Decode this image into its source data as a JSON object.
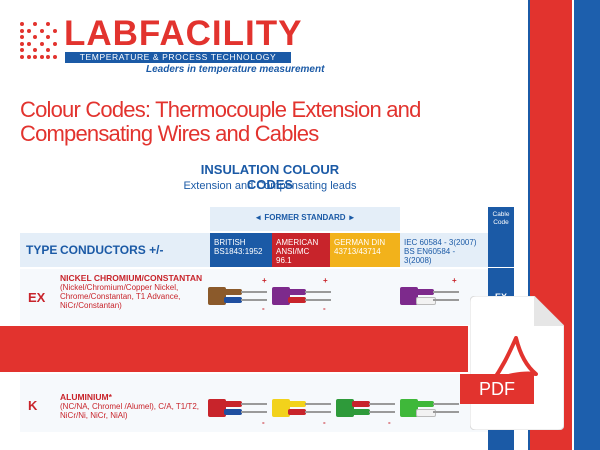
{
  "brand": {
    "name": "LABFACILITY",
    "subtitle": "TEMPERATURE & PROCESS TECHNOLOGY",
    "tagline": "Leaders in temperature measurement"
  },
  "page": {
    "title": "Colour Codes: Thermocouple Extension and Compensating Wires and Cables",
    "section_title": "INSULATION COLOUR CODES",
    "section_subtitle": "Extension and Compensating leads"
  },
  "table": {
    "former_standard": "◄ FORMER STANDARD ►",
    "cable_code_header": "Cable Code",
    "col_type": "TYPE",
    "col_conductors": "CONDUCTORS +/-",
    "standards": {
      "british": "BRITISH BS1843:1952",
      "american": "AMERICAN ANSI/MC 96.1",
      "german": "GERMAN DIN 43713/43714",
      "iec": "IEC 60584 - 3(2007) BS EN60584 - 3(2008)"
    },
    "rows": [
      {
        "type": "EX",
        "conductor_name": "NICKEL CHROMIUM/CONSTANTAN",
        "conductor_desc": "(Nickel/Chromium/Copper Nickel, Chrome/Constantan, T1 Advance, NiCr/Constantan)",
        "code": "EX"
      },
      {
        "type": "K",
        "conductor_name": "ALUMINIUM*",
        "conductor_desc": "(NC/NA, Chromel /Alumel), C/A, T1/T2, NiCr/Ni, NiCr, NiAl)",
        "code": ""
      }
    ],
    "plus": "+",
    "minus": "-"
  },
  "colors": {
    "brand_red": "#e2332e",
    "brand_blue": "#1b5aa6",
    "american_red": "#c8242b",
    "german_yellow": "#f2b21b"
  },
  "pdf_badge": {
    "label": "PDF"
  }
}
